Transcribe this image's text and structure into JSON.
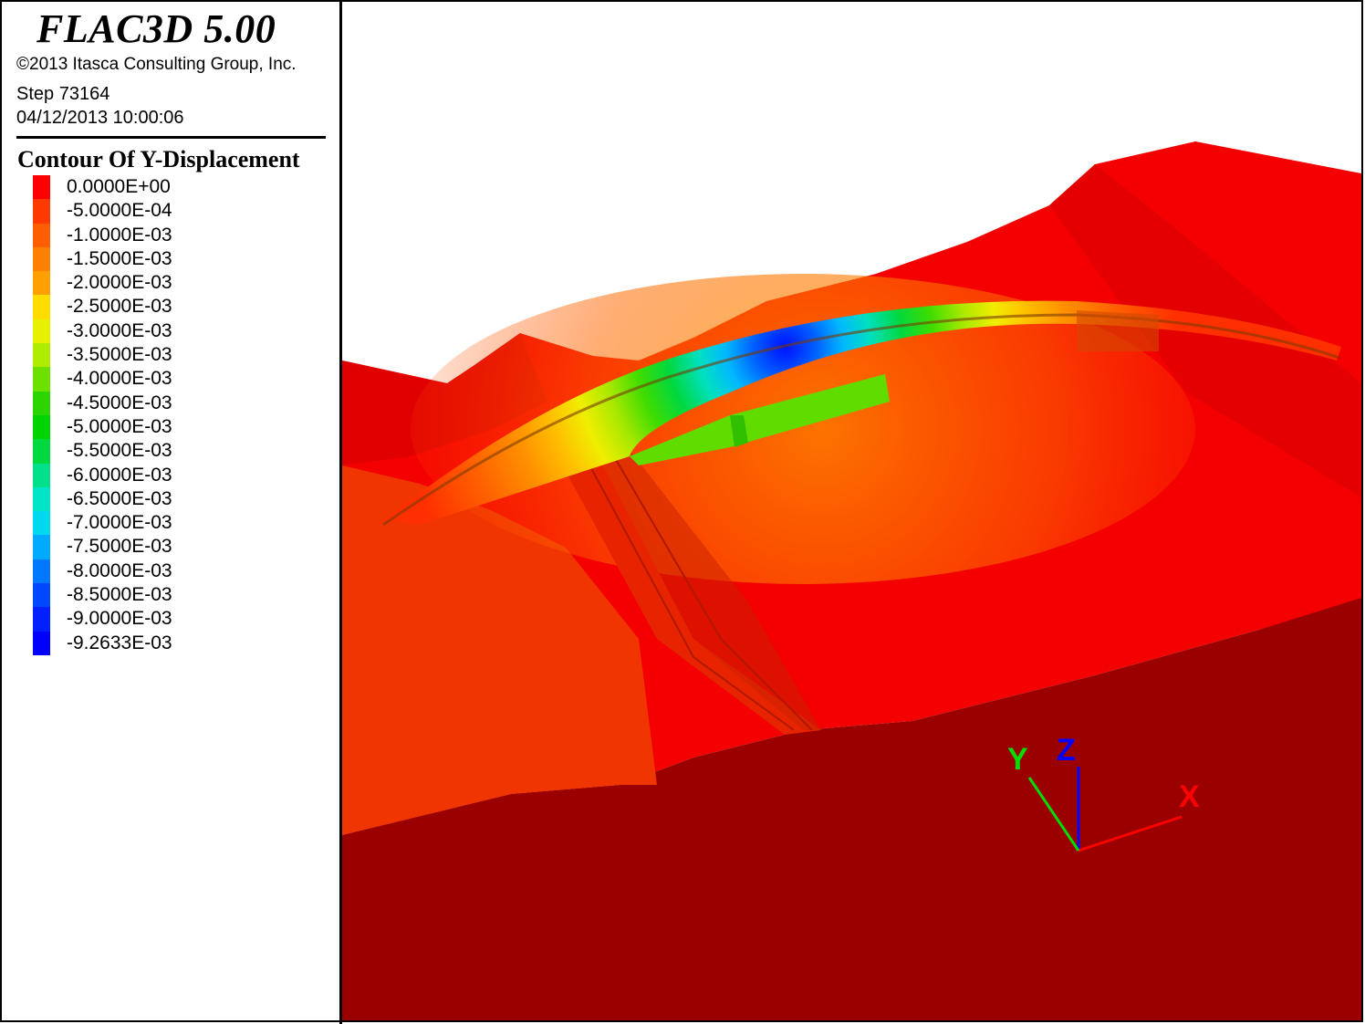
{
  "app": {
    "title": "FLAC3D 5.00",
    "copyright": "©2013 Itasca Consulting Group, Inc.",
    "step": "Step 73164",
    "timestamp": "04/12/2013 10:00:06"
  },
  "legend": {
    "title": "Contour Of Y-Displacement",
    "items": [
      {
        "label": "0.0000E+00",
        "color": "#ff0000"
      },
      {
        "label": "-5.0000E-04",
        "color": "#ff3a00"
      },
      {
        "label": "-1.0000E-03",
        "color": "#ff5e00"
      },
      {
        "label": "-1.5000E-03",
        "color": "#ff7f00"
      },
      {
        "label": "-2.0000E-03",
        "color": "#ffa000"
      },
      {
        "label": "-2.5000E-03",
        "color": "#ffdd00"
      },
      {
        "label": "-3.0000E-03",
        "color": "#e6f000"
      },
      {
        "label": "-3.5000E-03",
        "color": "#b0ec00"
      },
      {
        "label": "-4.0000E-03",
        "color": "#6ee000"
      },
      {
        "label": "-4.5000E-03",
        "color": "#2cd400"
      },
      {
        "label": "-5.0000E-03",
        "color": "#00d400"
      },
      {
        "label": "-5.5000E-03",
        "color": "#00d840"
      },
      {
        "label": "-6.0000E-03",
        "color": "#00e08a"
      },
      {
        "label": "-6.5000E-03",
        "color": "#00e4c8"
      },
      {
        "label": "-7.0000E-03",
        "color": "#00d8f0"
      },
      {
        "label": "-7.5000E-03",
        "color": "#00aaff"
      },
      {
        "label": "-8.0000E-03",
        "color": "#0078ff"
      },
      {
        "label": "-8.5000E-03",
        "color": "#0048ff"
      },
      {
        "label": "-9.0000E-03",
        "color": "#0020ff"
      },
      {
        "label": "-9.2633E-03",
        "color": "#0000ff"
      }
    ]
  },
  "axes": {
    "x_label": "X",
    "y_label": "Y",
    "z_label": "Z",
    "x_color": "#ff0000",
    "y_color": "#00dd00",
    "z_color": "#0000ff"
  },
  "model": {
    "top_color": "#f40000",
    "side_color": "#9a0000"
  }
}
